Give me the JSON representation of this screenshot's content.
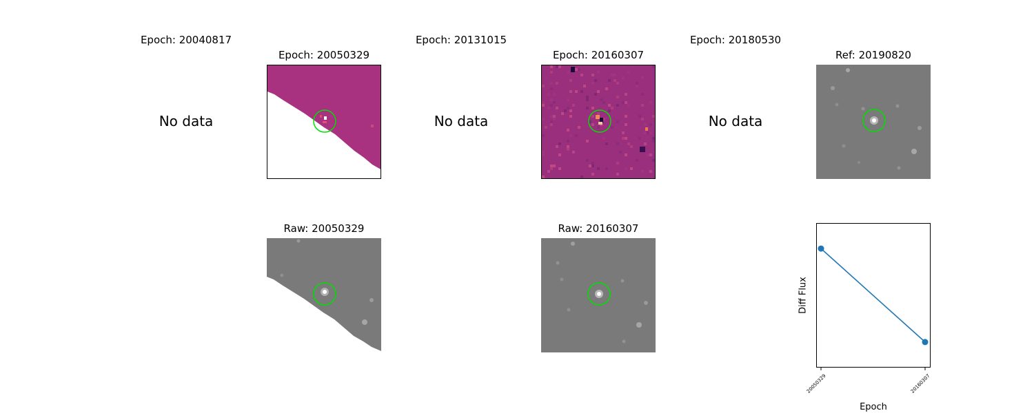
{
  "top_row": [
    {
      "title": "Epoch: 20040817",
      "has_data": false,
      "no_data_text": "No data"
    },
    {
      "title": "Epoch: 20050329",
      "has_data": true
    },
    {
      "title": "Epoch: 20131015",
      "has_data": false,
      "no_data_text": "No data"
    },
    {
      "title": "Epoch: 20160307",
      "has_data": true
    },
    {
      "title": "Epoch: 20180530",
      "has_data": false,
      "no_data_text": "No data"
    },
    {
      "title": "Ref: 20190820",
      "has_data": true
    }
  ],
  "bottom_row": [
    {
      "title": "Raw: 20050329"
    },
    {
      "title": "Raw: 20160307"
    }
  ],
  "colors": {
    "circle": "#00e000",
    "diff_base": "#a8327f",
    "raw_base": "#7a7a7a",
    "line": "#1f77b4"
  },
  "chart_data": {
    "type": "line",
    "title": "",
    "xlabel": "Epoch",
    "ylabel": "Diff Flux",
    "categories": [
      "20050329",
      "20160307"
    ],
    "values": [
      0.85,
      0.15
    ],
    "ylim": [
      0,
      1
    ],
    "grid": false,
    "y_ticks_shown": false
  }
}
